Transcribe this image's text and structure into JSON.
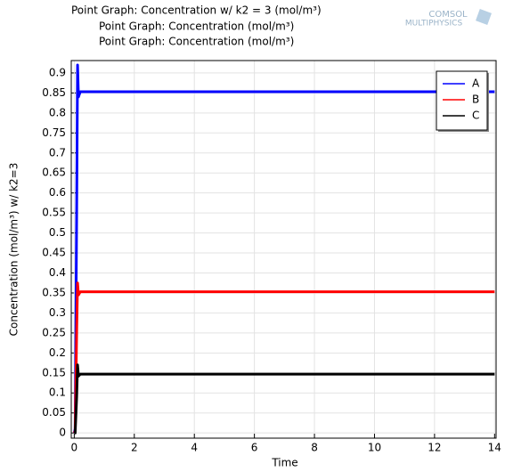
{
  "chart_data": {
    "type": "line",
    "titles": [
      "Point Graph: Concentration w/ k2 = 3 (mol/m³)",
      "Point Graph: Concentration (mol/m³)",
      "Point Graph: Concentration (mol/m³)"
    ],
    "x_label": "Time",
    "y_label": "Concentration (mol/m³) w/ k2=3",
    "x": [
      0,
      0.03,
      0.08,
      0.11,
      0.14,
      0.2,
      14
    ],
    "series": [
      {
        "name": "A",
        "color": "#0000ff",
        "values": [
          0,
          0.01,
          0.55,
          0.92,
          0.84,
          0.853,
          0.853
        ]
      },
      {
        "name": "B",
        "color": "#ff0000",
        "values": [
          0,
          0.005,
          0.25,
          0.375,
          0.345,
          0.353,
          0.353
        ]
      },
      {
        "name": "C",
        "color": "#000000",
        "values": [
          0,
          0.0,
          0.09,
          0.17,
          0.142,
          0.147,
          0.147
        ]
      }
    ],
    "xlim": [
      -0.1,
      14.05
    ],
    "ylim": [
      -0.013,
      0.931
    ],
    "xticks": [
      0,
      2,
      4,
      6,
      8,
      10,
      12,
      14
    ],
    "yticks": [
      0,
      0.05,
      0.1,
      0.15,
      0.2,
      0.25,
      0.3,
      0.35,
      0.4,
      0.45,
      0.5,
      0.55,
      0.6,
      0.65,
      0.7,
      0.75,
      0.8,
      0.85,
      0.9
    ],
    "grid": true,
    "legend": "upper-right"
  },
  "logo": [
    "COMSOL",
    "MULTIPHYSICS"
  ]
}
